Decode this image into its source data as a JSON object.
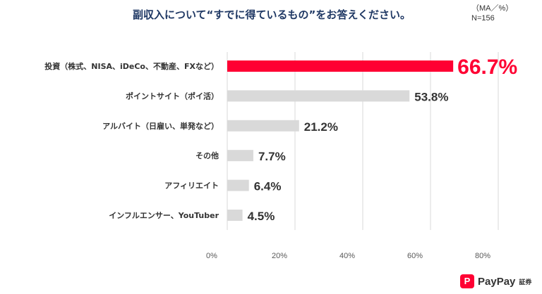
{
  "header": {
    "title": "副収入について“すでに得ているもの”をお答えください。",
    "note_line1": "（MA／%）",
    "note_line2": "N=156"
  },
  "brand": {
    "mark": "P",
    "name": "PayPay",
    "sub": "証券"
  },
  "colors": {
    "highlight": "#ff0033",
    "bar": "#d9d9d9",
    "grid": "#d9d9d9",
    "title": "#1f3864"
  },
  "chart_data": {
    "type": "bar",
    "orientation": "horizontal",
    "categories": [
      "投資（株式、NISA、iDeCo、不動産、FXなど）",
      "ポイントサイト（ポイ活）",
      "アルバイト（日雇い、単発など）",
      "その他",
      "アフィリエイト",
      "インフルエンサー、YouTuber"
    ],
    "values": [
      66.7,
      53.8,
      21.2,
      7.7,
      6.4,
      4.5
    ],
    "value_labels": [
      "66.7%",
      "53.8%",
      "21.2%",
      "7.7%",
      "6.4%",
      "4.5%"
    ],
    "highlight_index": 0,
    "xlim": [
      0,
      80
    ],
    "xticks": [
      0,
      20,
      40,
      60,
      80
    ],
    "xtick_labels": [
      "0%",
      "20%",
      "40%",
      "60%",
      "80%"
    ],
    "grid": true
  }
}
